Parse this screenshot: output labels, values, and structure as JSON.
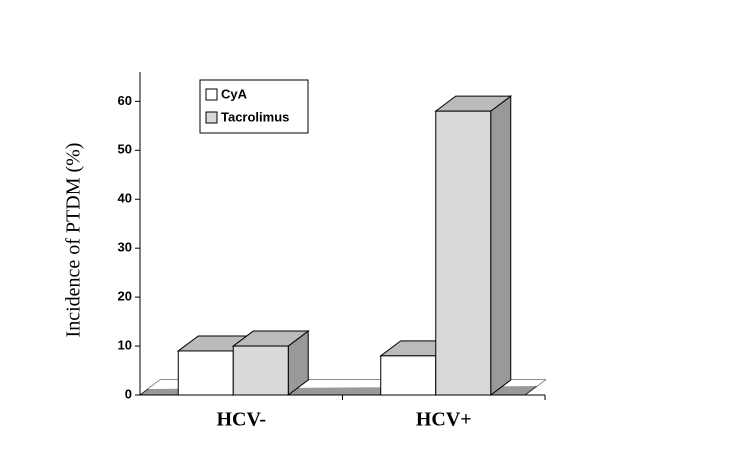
{
  "chart_data": {
    "type": "bar3d",
    "y_label": "Incidence of PTDM (%)",
    "categories": [
      "HCV-",
      "HCV+"
    ],
    "series": [
      {
        "name": "CyA",
        "color": "#ffffff",
        "values": [
          9,
          8
        ]
      },
      {
        "name": "Tacrolimus",
        "color": "#d9d9d9",
        "values": [
          10,
          58
        ]
      }
    ],
    "ylim": [
      0,
      66
    ],
    "yticks": [
      0,
      10,
      20,
      30,
      40,
      50,
      60
    ],
    "legend": "top-left"
  }
}
